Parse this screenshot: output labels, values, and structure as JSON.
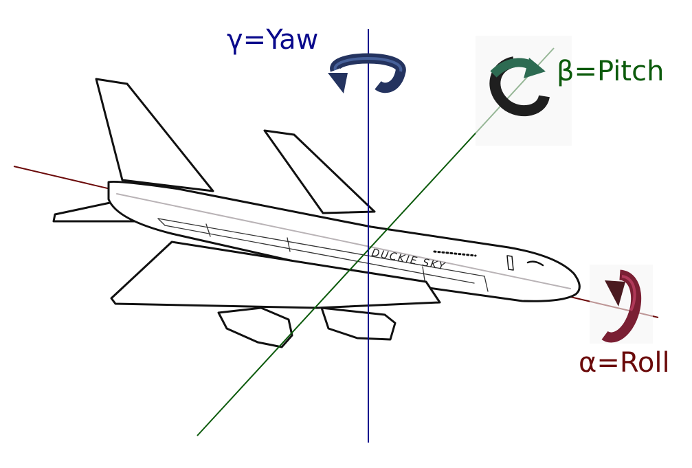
{
  "labels": {
    "yaw": "γ=Yaw",
    "pitch": "β=Pitch",
    "roll": "α=Roll",
    "aircraft_text": "DUCKIE SKY"
  },
  "colors": {
    "yaw": "#0a0a8c",
    "pitch": "#0b5a0b",
    "roll": "#6b0a0a",
    "yaw_arrow": "#24335f",
    "pitch_arrow": "#2d6b52",
    "roll_arrow": "#7a1f33",
    "outline": "#111111",
    "background": "#ffffff"
  },
  "icons": {
    "yaw": "rotation-arrow-icon",
    "pitch": "rotation-arrow-icon",
    "roll": "rotation-arrow-icon"
  }
}
